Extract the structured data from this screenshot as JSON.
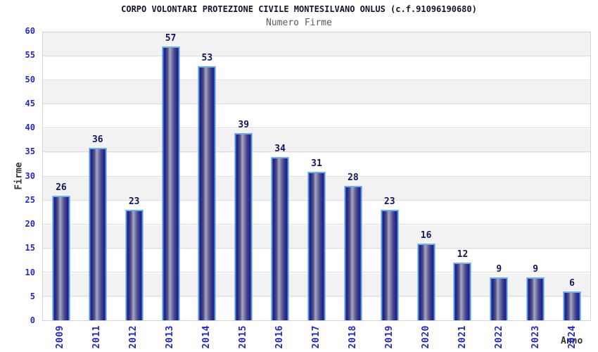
{
  "header": {
    "title": "CORPO VOLONTARI PROTEZIONE CIVILE MONTESILVANO ONLUS (c.f.91096190680)",
    "subtitle": "Numero Firme"
  },
  "chart_data": {
    "type": "bar",
    "title": "Numero Firme",
    "categories": [
      "2009",
      "2011",
      "2012",
      "2013",
      "2014",
      "2015",
      "2016",
      "2017",
      "2018",
      "2019",
      "2020",
      "2021",
      "2022",
      "2023",
      "2024"
    ],
    "values": [
      26,
      36,
      23,
      57,
      53,
      39,
      34,
      31,
      28,
      23,
      16,
      12,
      9,
      9,
      6
    ],
    "xlabel": "Anno",
    "ylabel": "Firme",
    "ylim": [
      0,
      60
    ],
    "ytick_step": 5,
    "yticks": [
      0,
      5,
      10,
      15,
      20,
      25,
      30,
      35,
      40,
      45,
      50,
      55,
      60
    ],
    "grid": "horizontal alternating bands every 5 units",
    "legend_position": "none",
    "value_labels": "above each bar",
    "colors": {
      "bar_edge_dark": "#1e1e7e",
      "bar_highlight": "#a6a6c9",
      "bar_border": "#4d94ec",
      "tick_label": "#2626cc",
      "value_label": "#15155e",
      "band_gray": "#f2f2f2",
      "band_white": "#ffffff",
      "plot_border": "#d4d4d4",
      "title_color": "#141432",
      "subtitle_color": "#5a5a5a",
      "axis_title_color": "#333333"
    }
  }
}
